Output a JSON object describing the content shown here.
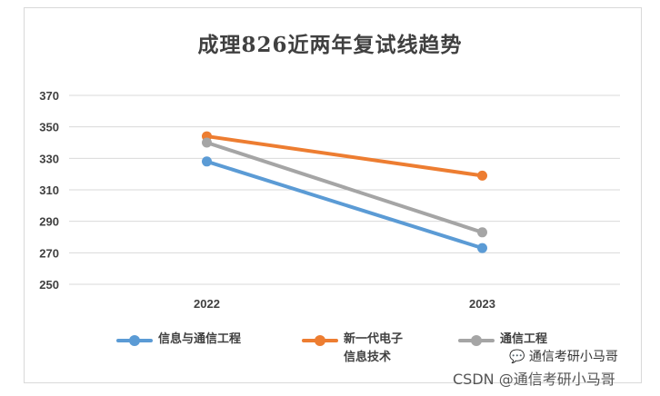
{
  "chart_data": {
    "type": "line",
    "title": "成理826近两年复试线趋势",
    "categories": [
      "2022",
      "2023"
    ],
    "series": [
      {
        "name": "信息与通信工程",
        "values": [
          328,
          273
        ],
        "color": "#5b9bd5"
      },
      {
        "name": "新一代电子信息技术",
        "values": [
          344,
          319
        ],
        "color": "#ed7d31"
      },
      {
        "name": "通信工程",
        "values": [
          340,
          283
        ],
        "color": "#a5a5a5"
      }
    ],
    "yticks": [
      "250",
      "270",
      "290",
      "310",
      "330",
      "350",
      "370"
    ],
    "ylim": [
      250,
      370
    ],
    "grid": true,
    "legend": "bottom"
  },
  "watermark": {
    "wechat": "通信考研小马哥",
    "csdn": "CSDN @通信考研小马哥"
  }
}
